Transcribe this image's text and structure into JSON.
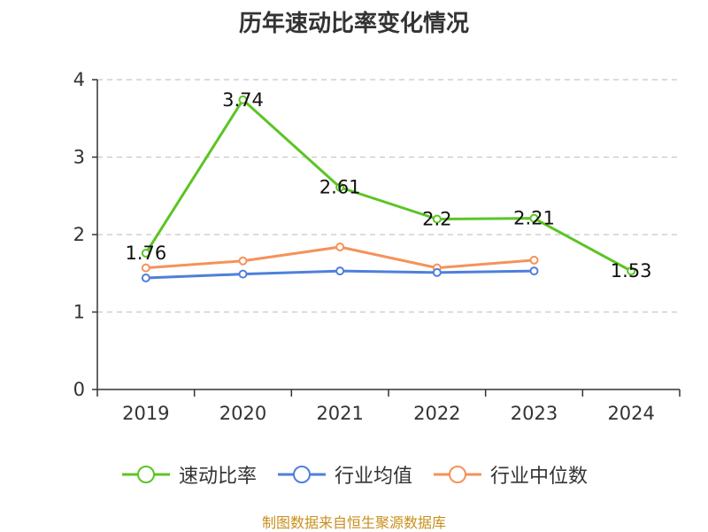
{
  "chart_data": {
    "type": "line",
    "title": "历年速动比率变化情况",
    "categories": [
      "2019",
      "2020",
      "2021",
      "2022",
      "2023",
      "2024"
    ],
    "ylim": [
      0,
      4
    ],
    "yticks": [
      0,
      1,
      2,
      3,
      4
    ],
    "grid": true,
    "legend_position": "bottom",
    "series": [
      {
        "name": "速动比率",
        "color": "#5cc424",
        "values": [
          1.76,
          3.74,
          2.61,
          2.2,
          2.21,
          1.53
        ],
        "labels": [
          "1.76",
          "3.74",
          "2.61",
          "2.2",
          "2.21",
          "1.53"
        ]
      },
      {
        "name": "行业均值",
        "color": "#4f7fda",
        "values": [
          1.44,
          1.49,
          1.53,
          1.51,
          1.53,
          null
        ]
      },
      {
        "name": "行业中位数",
        "color": "#f5925a",
        "values": [
          1.57,
          1.66,
          1.84,
          1.57,
          1.67,
          null
        ]
      }
    ]
  },
  "source": "制图数据来自恒生聚源数据库"
}
